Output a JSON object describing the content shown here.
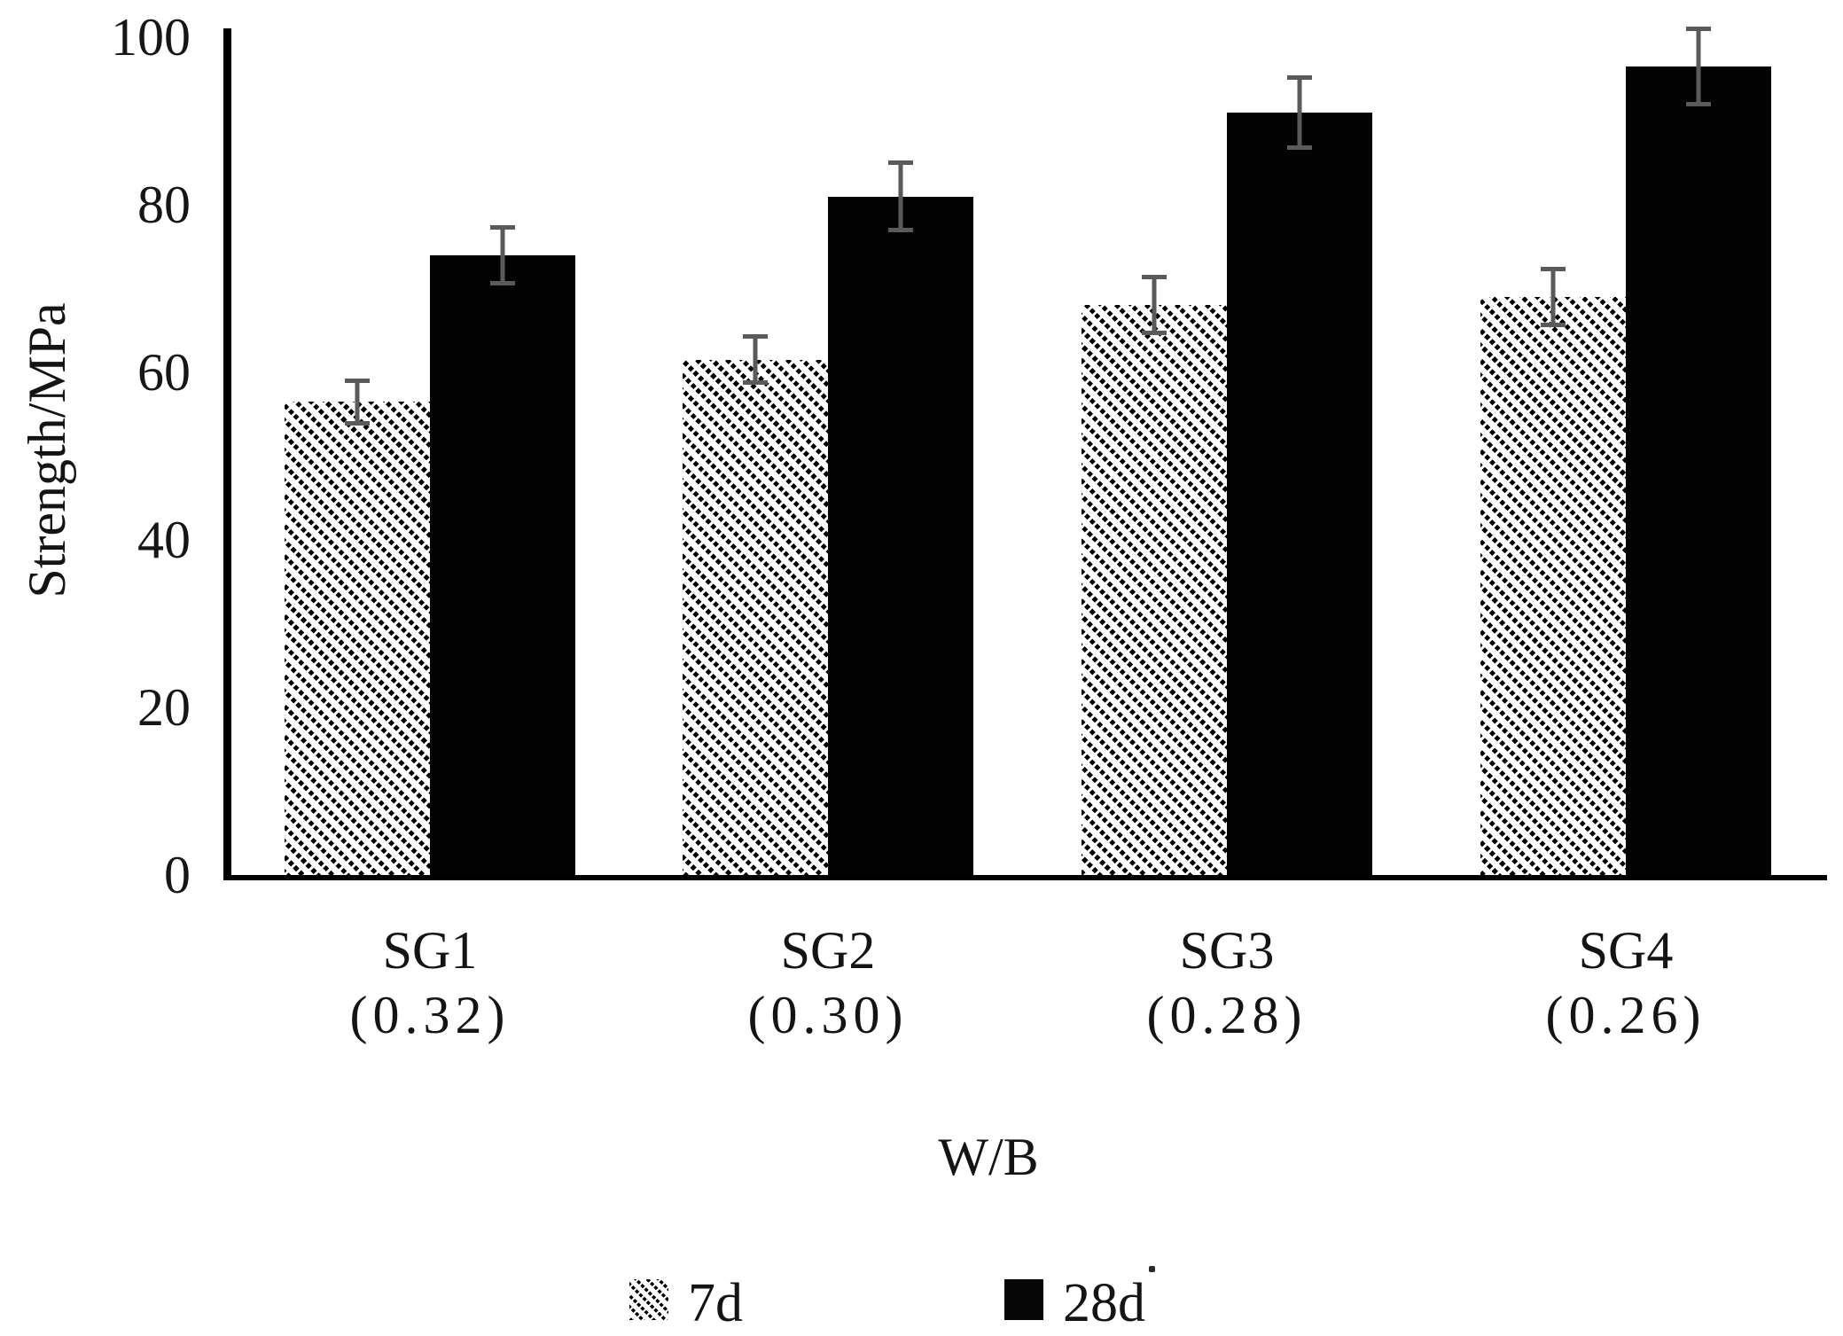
{
  "chart_data": {
    "type": "bar",
    "title": "",
    "xlabel": "W/B",
    "ylabel": "Strength/MPa",
    "ylim": [
      0,
      100
    ],
    "yticks": [
      0,
      20,
      40,
      60,
      80,
      100
    ],
    "grid": false,
    "legend_position": "bottom",
    "error_bars": true,
    "categories": [
      "SG1",
      "SG2",
      "SG3",
      "SG4"
    ],
    "category_sublabels": [
      "(0.32)",
      "(0.30)",
      "(0.28)",
      "(0.26)"
    ],
    "series": [
      {
        "name": "7d",
        "pattern": "diagonal-hatch",
        "values": [
          56.5,
          61.5,
          68.0,
          69.0
        ],
        "errors": [
          2.8,
          3.0,
          3.6,
          3.6
        ]
      },
      {
        "name": "28d",
        "pattern": "solid-black",
        "values": [
          74.0,
          81.0,
          91.0,
          96.5
        ],
        "errors": [
          3.6,
          4.3,
          4.4,
          4.8
        ]
      }
    ]
  },
  "colors": {
    "background": "#ffffff",
    "bar_solid": "#030303",
    "error_bar": "#5a5a5a",
    "axis": "#000000",
    "text": "#141414"
  }
}
